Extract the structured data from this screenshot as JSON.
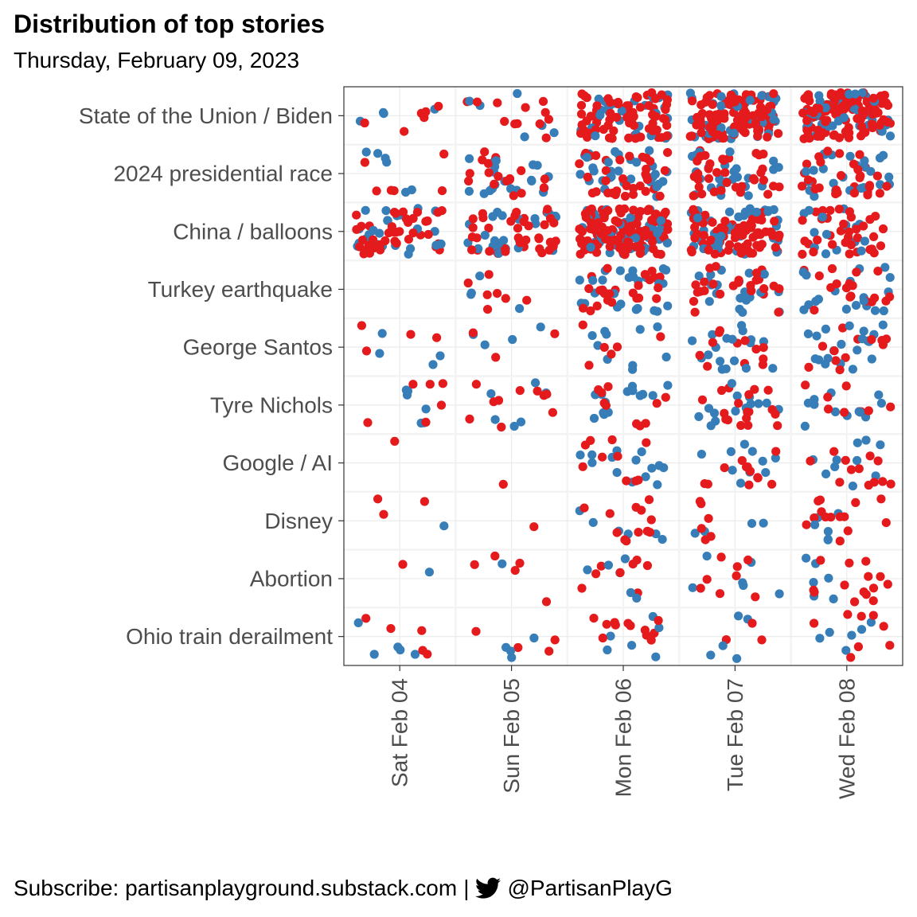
{
  "chart_data": {
    "type": "scatter",
    "title": "Distribution of top stories",
    "subtitle": "Thursday, February 09, 2023",
    "xlabel": "",
    "ylabel": "",
    "x_categories": [
      "Sat Feb 04",
      "Sun Feb 05",
      "Mon Feb 06",
      "Tue Feb 07",
      "Wed Feb 08"
    ],
    "y_categories": [
      "State of the Union / Biden",
      "2024 presidential race",
      "China / balloons",
      "Turkey earthquake",
      "George Santos",
      "Tyre Nichols",
      "Google / AI",
      "Disney",
      "Abortion",
      "Ohio train derailment"
    ],
    "series_colors": {
      "a": "#e41a1c",
      "b": "#377eb8"
    },
    "jittered": true,
    "grid": true,
    "counts": [
      [
        [
          6,
          4
        ],
        [
          12,
          6
        ],
        [
          70,
          30
        ],
        [
          95,
          45
        ],
        [
          110,
          40
        ]
      ],
      [
        [
          6,
          6
        ],
        [
          18,
          20
        ],
        [
          35,
          30
        ],
        [
          35,
          25
        ],
        [
          30,
          25
        ]
      ],
      [
        [
          40,
          25
        ],
        [
          40,
          25
        ],
        [
          110,
          50
        ],
        [
          70,
          45
        ],
        [
          35,
          15
        ]
      ],
      [
        [
          0,
          0
        ],
        [
          7,
          4
        ],
        [
          25,
          25
        ],
        [
          25,
          20
        ],
        [
          18,
          20
        ]
      ],
      [
        [
          4,
          4
        ],
        [
          3,
          4
        ],
        [
          6,
          10
        ],
        [
          12,
          18
        ],
        [
          12,
          20
        ]
      ],
      [
        [
          6,
          6
        ],
        [
          10,
          6
        ],
        [
          10,
          14
        ],
        [
          18,
          14
        ],
        [
          8,
          12
        ]
      ],
      [
        [
          1,
          0
        ],
        [
          1,
          0
        ],
        [
          10,
          14
        ],
        [
          12,
          10
        ],
        [
          12,
          10
        ]
      ],
      [
        [
          3,
          1
        ],
        [
          1,
          0
        ],
        [
          12,
          6
        ],
        [
          6,
          4
        ],
        [
          14,
          6
        ]
      ],
      [
        [
          1,
          1
        ],
        [
          5,
          1
        ],
        [
          8,
          6
        ],
        [
          8,
          6
        ],
        [
          14,
          6
        ]
      ],
      [
        [
          5,
          5
        ],
        [
          4,
          4
        ],
        [
          12,
          6
        ],
        [
          3,
          5
        ],
        [
          8,
          6
        ]
      ]
    ],
    "caption_lead": "Subscribe: partisanplayground.substack.com",
    "caption_sep": "|",
    "caption_handle": "@PartisanPlayG",
    "caption_icon": "twitter-bird-icon"
  }
}
